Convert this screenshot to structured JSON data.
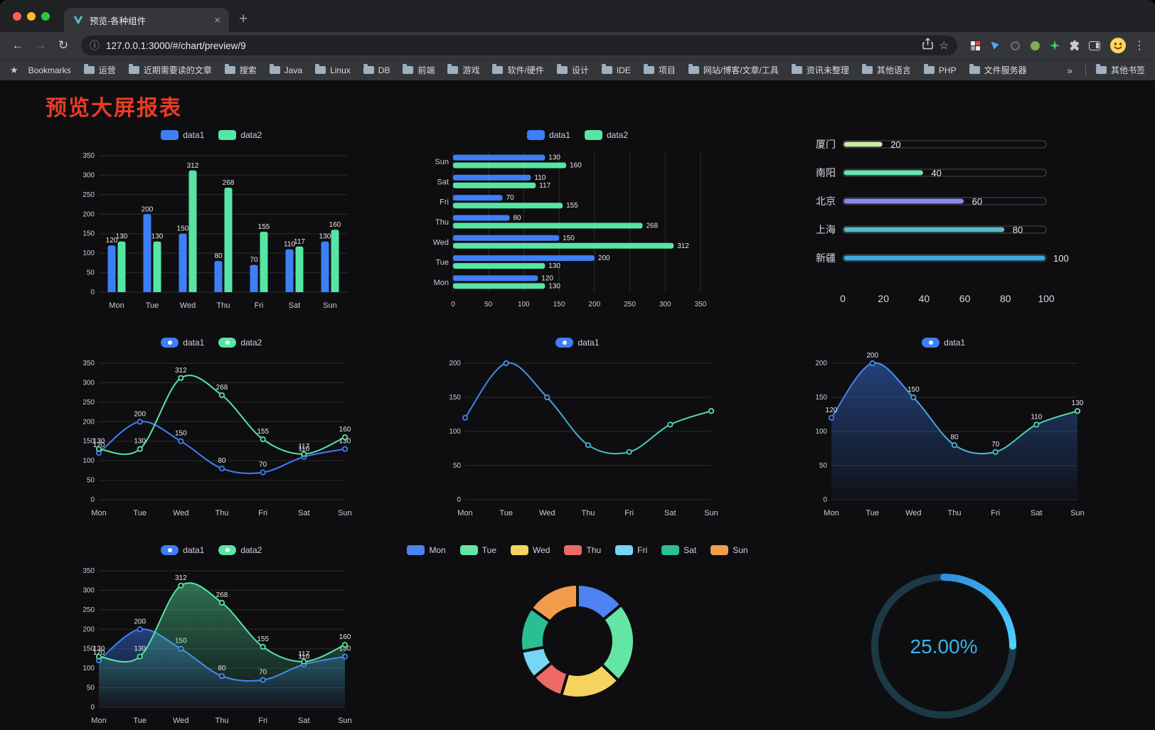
{
  "browser": {
    "tab_title": "预览-各种组件",
    "url": "127.0.0.1:3000/#/chart/preview/9",
    "bookmarks_bar": {
      "manager_label": "Bookmarks",
      "folders": [
        "运营",
        "近期需要读的文章",
        "搜索",
        "Java",
        "Linux",
        "DB",
        "前端",
        "游戏",
        "软件/硬件",
        "设计",
        "IDE",
        "项目",
        "网站/博客/文章/工具",
        "资讯未整理",
        "其他语言",
        "PHP",
        "文件服务器"
      ],
      "overflow_label": "»",
      "other_bookmarks_label": "其他书签"
    }
  },
  "page": {
    "title": "预览大屏报表",
    "title_color": "#EA3B25",
    "accent_blue": "#3E7EF7",
    "accent_green": "#55E6A3"
  },
  "chart_data": [
    {
      "id": "bar-grouped",
      "type": "bar",
      "legend": [
        {
          "label": "data1",
          "color": "#3E7EF7"
        },
        {
          "label": "data2",
          "color": "#55E6A3"
        }
      ],
      "categories": [
        "Mon",
        "Tue",
        "Wed",
        "Thu",
        "Fri",
        "Sat",
        "Sun"
      ],
      "series": [
        {
          "name": "data1",
          "color": "#3E7EF7",
          "values": [
            120,
            200,
            150,
            80,
            70,
            110,
            130
          ]
        },
        {
          "name": "data2",
          "color": "#55E6A3",
          "values": [
            130,
            130,
            312,
            268,
            155,
            117,
            160
          ]
        }
      ],
      "ylim": [
        0,
        350
      ],
      "ytick": 50
    },
    {
      "id": "hbar",
      "type": "hbar",
      "legend": [
        {
          "label": "data1",
          "color": "#3E7EF7"
        },
        {
          "label": "data2",
          "color": "#55E6A3"
        }
      ],
      "categories": [
        "Mon",
        "Tue",
        "Wed",
        "Thu",
        "Fri",
        "Sat",
        "Sun"
      ],
      "series": [
        {
          "name": "data1",
          "color": "#3E7EF7",
          "values": [
            120,
            200,
            150,
            80,
            70,
            110,
            130
          ]
        },
        {
          "name": "data2",
          "color": "#55E6A3",
          "values": [
            130,
            130,
            312,
            268,
            155,
            117,
            160
          ]
        }
      ],
      "xlim": [
        0,
        350
      ],
      "xtick": 50
    },
    {
      "id": "progress",
      "type": "progress",
      "xlim": [
        0,
        100
      ],
      "xticks": [
        0,
        20,
        40,
        60,
        80,
        100
      ],
      "items": [
        {
          "label": "厦门",
          "value": 20,
          "color": "#CDE9A6"
        },
        {
          "label": "南阳",
          "value": 40,
          "color": "#69E3B0"
        },
        {
          "label": "北京",
          "value": 60,
          "color": "#8689F2"
        },
        {
          "label": "上海",
          "value": 80,
          "color": "#55BBC5"
        },
        {
          "label": "新疆",
          "value": 100,
          "color": "#39ABE0"
        }
      ]
    },
    {
      "id": "line-double",
      "type": "line",
      "smooth": true,
      "legend": [
        {
          "label": "data1",
          "color": "#3E7EF7"
        },
        {
          "label": "data2",
          "color": "#55E6A3"
        }
      ],
      "categories": [
        "Mon",
        "Tue",
        "Wed",
        "Thu",
        "Fri",
        "Sat",
        "Sun"
      ],
      "series": [
        {
          "name": "data1",
          "color": "#3E7EF7",
          "values": [
            120,
            200,
            150,
            80,
            70,
            110,
            130
          ],
          "labels": true
        },
        {
          "name": "data2",
          "color": "#55E6A3",
          "values": [
            130,
            130,
            312,
            268,
            155,
            117,
            160
          ],
          "labels": true
        }
      ],
      "ylim": [
        0,
        350
      ],
      "ytick": 50
    },
    {
      "id": "line-gradient",
      "type": "line",
      "smooth": true,
      "legend": [
        {
          "label": "data1",
          "color": "#3E7EF7"
        }
      ],
      "categories": [
        "Mon",
        "Tue",
        "Wed",
        "Thu",
        "Fri",
        "Sat",
        "Sun"
      ],
      "series": [
        {
          "name": "data1",
          "color": "#3E7EF7",
          "gradient": [
            "#3E7EF7",
            "#55E6A3"
          ],
          "values": [
            120,
            200,
            150,
            80,
            70,
            110,
            130
          ]
        }
      ],
      "ylim": [
        0,
        200
      ],
      "ytick": 50
    },
    {
      "id": "line-area",
      "type": "line",
      "smooth": true,
      "legend": [
        {
          "label": "data1",
          "color": "#3E7EF7"
        }
      ],
      "categories": [
        "Mon",
        "Tue",
        "Wed",
        "Thu",
        "Fri",
        "Sat",
        "Sun"
      ],
      "series": [
        {
          "name": "data1",
          "color": "#3E7EF7",
          "gradient": [
            "#3E7EF7",
            "#55E6A3"
          ],
          "values": [
            120,
            200,
            150,
            80,
            70,
            110,
            130
          ],
          "labels": true,
          "area": true
        }
      ],
      "ylim": [
        0,
        200
      ],
      "ytick": 50
    },
    {
      "id": "line-double-area",
      "type": "line",
      "smooth": true,
      "legend": [
        {
          "label": "data1",
          "color": "#3E7EF7"
        },
        {
          "label": "data2",
          "color": "#55E6A3"
        }
      ],
      "categories": [
        "Mon",
        "Tue",
        "Wed",
        "Thu",
        "Fri",
        "Sat",
        "Sun"
      ],
      "series": [
        {
          "name": "data1",
          "color": "#3E7EF7",
          "values": [
            120,
            200,
            150,
            80,
            70,
            110,
            130
          ],
          "labels": true,
          "area": true
        },
        {
          "name": "data2",
          "color": "#55E6A3",
          "values": [
            130,
            130,
            312,
            268,
            155,
            117,
            160
          ],
          "labels": true,
          "area": true
        }
      ],
      "ylim": [
        0,
        350
      ],
      "ytick": 50
    },
    {
      "id": "pie-week",
      "type": "pie",
      "slices": [
        {
          "label": "Mon",
          "value": 120,
          "color": "#4C83F0"
        },
        {
          "label": "Tue",
          "value": 200,
          "color": "#63E6A4"
        },
        {
          "label": "Wed",
          "value": 150,
          "color": "#F6D35F"
        },
        {
          "label": "Thu",
          "value": 80,
          "color": "#ED6A67"
        },
        {
          "label": "Fri",
          "value": 70,
          "color": "#74D7F6"
        },
        {
          "label": "Sat",
          "value": 110,
          "color": "#2BBE93"
        },
        {
          "label": "Sun",
          "value": 130,
          "color": "#F29B4B"
        }
      ]
    },
    {
      "id": "gauge",
      "type": "gauge",
      "value": 25,
      "label": "25.00%",
      "text_color": "#3AB5EC",
      "track_color": "#1C3A46",
      "gradient": [
        "#2F8FD8",
        "#4FD0FF"
      ]
    }
  ]
}
